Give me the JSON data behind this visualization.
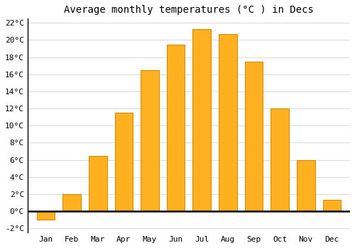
{
  "title": "Average monthly temperatures (°C ) in Decs",
  "months": [
    "Jan",
    "Feb",
    "Mar",
    "Apr",
    "May",
    "Jun",
    "Jul",
    "Aug",
    "Sep",
    "Oct",
    "Nov",
    "Dec"
  ],
  "values": [
    -1.0,
    2.0,
    6.5,
    11.5,
    16.5,
    19.5,
    21.3,
    20.7,
    17.5,
    12.0,
    6.0,
    1.3
  ],
  "bar_color": "#FFB01F",
  "bar_edge_color": "#CC8800",
  "ylim": [
    -2.5,
    22.5
  ],
  "yticks": [
    -2,
    0,
    2,
    4,
    6,
    8,
    10,
    12,
    14,
    16,
    18,
    20,
    22
  ],
  "ytick_labels": [
    "-2°C",
    "0°C",
    "2°C",
    "4°C",
    "6°C",
    "8°C",
    "10°C",
    "12°C",
    "14°C",
    "16°C",
    "18°C",
    "20°C",
    "22°C"
  ],
  "plot_bg_color": "#ffffff",
  "fig_bg_color": "#ffffff",
  "grid_color": "#dddddd",
  "title_fontsize": 10,
  "tick_fontsize": 8
}
